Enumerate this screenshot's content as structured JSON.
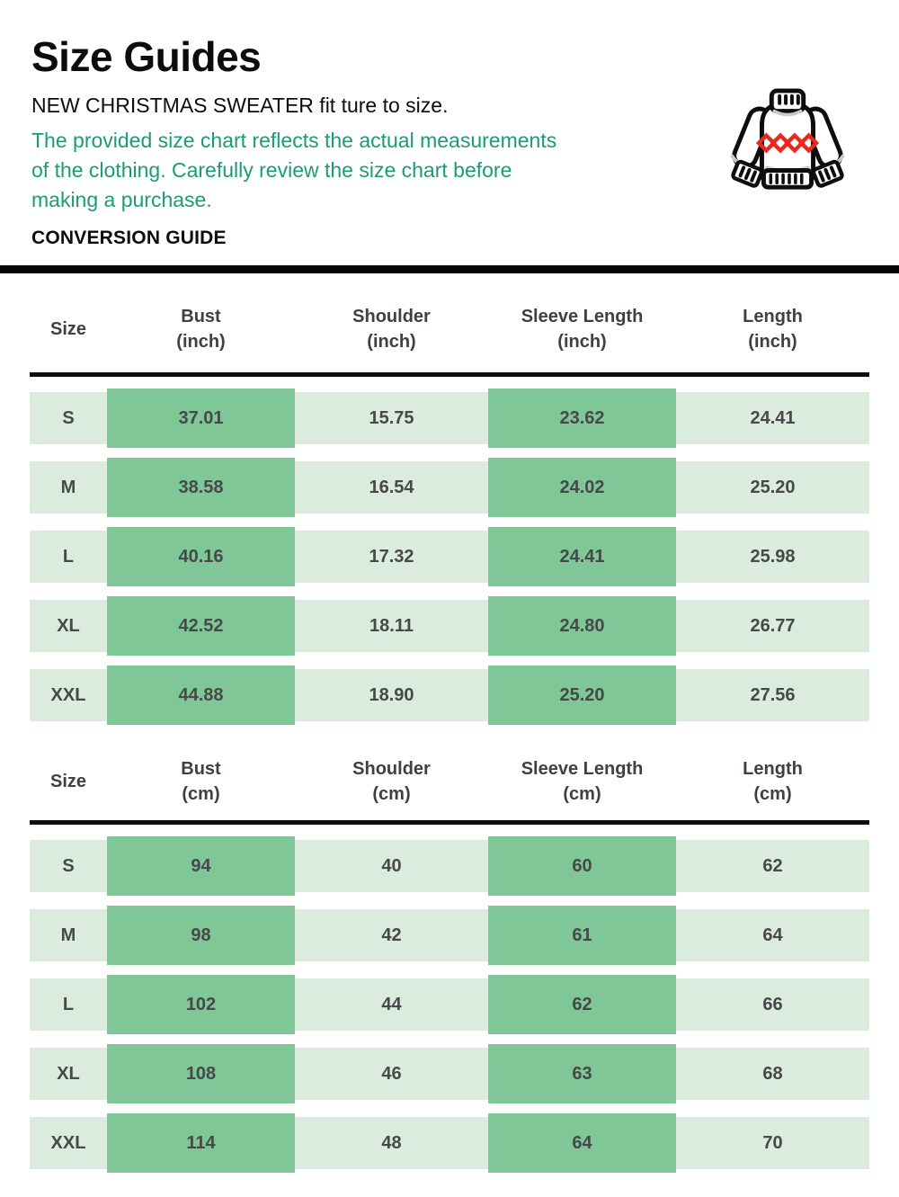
{
  "header": {
    "title": "Size Guides",
    "subtitle": "NEW CHRISTMAS SWEATER fit ture to size.",
    "note_lines": [
      "The provided size chart reflects the actual measurements",
      "of the clothing. Carefully review the size chart before",
      "making a purchase."
    ],
    "conversion_label": "CONVERSION GUIDE",
    "icon": "christmas-sweater-icon"
  },
  "colors": {
    "accent-green": "#1a9c74",
    "cell-dark": "#7fc796",
    "cell-light": "#dbebde",
    "diamond-red": "#e8291c",
    "outline-black": "#0d0d0d"
  },
  "tables": [
    {
      "unit": "inch",
      "columns": [
        {
          "label": "Size",
          "unit": ""
        },
        {
          "label": "Bust",
          "unit": "(inch)"
        },
        {
          "label": "Shoulder",
          "unit": "(inch)"
        },
        {
          "label": "Sleeve Length",
          "unit": "(inch)"
        },
        {
          "label": "Length",
          "unit": "(inch)"
        }
      ],
      "rows": [
        {
          "size": "S",
          "values": [
            "37.01",
            "15.75",
            "23.62",
            "24.41"
          ]
        },
        {
          "size": "M",
          "values": [
            "38.58",
            "16.54",
            "24.02",
            "25.20"
          ]
        },
        {
          "size": "L",
          "values": [
            "40.16",
            "17.32",
            "24.41",
            "25.98"
          ]
        },
        {
          "size": "XL",
          "values": [
            "42.52",
            "18.11",
            "24.80",
            "26.77"
          ]
        },
        {
          "size": "XXL",
          "values": [
            "44.88",
            "18.90",
            "25.20",
            "27.56"
          ]
        }
      ]
    },
    {
      "unit": "cm",
      "columns": [
        {
          "label": "Size",
          "unit": ""
        },
        {
          "label": "Bust",
          "unit": "(cm)"
        },
        {
          "label": "Shoulder",
          "unit": "(cm)"
        },
        {
          "label": "Sleeve Length",
          "unit": "(cm)"
        },
        {
          "label": "Length",
          "unit": "(cm)"
        }
      ],
      "rows": [
        {
          "size": "S",
          "values": [
            "94",
            "40",
            "60",
            "62"
          ]
        },
        {
          "size": "M",
          "values": [
            "98",
            "42",
            "61",
            "64"
          ]
        },
        {
          "size": "L",
          "values": [
            "102",
            "44",
            "62",
            "66"
          ]
        },
        {
          "size": "XL",
          "values": [
            "108",
            "46",
            "63",
            "68"
          ]
        },
        {
          "size": "XXL",
          "values": [
            "114",
            "48",
            "64",
            "70"
          ]
        }
      ]
    }
  ]
}
